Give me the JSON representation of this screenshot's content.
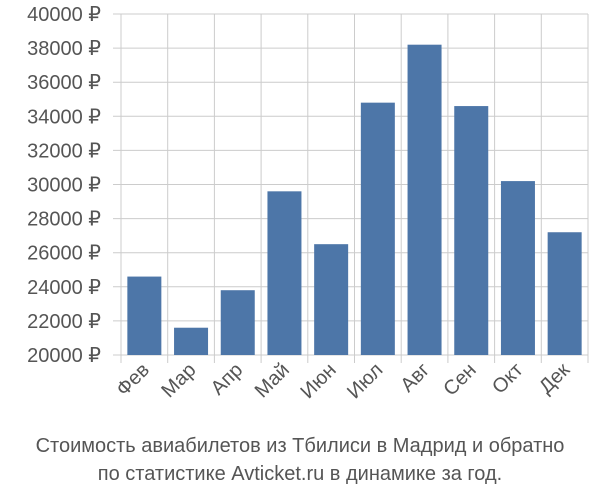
{
  "chart_data": {
    "type": "bar",
    "categories": [
      "Фев",
      "Мар",
      "Апр",
      "Май",
      "Июн",
      "Июл",
      "Авг",
      "Сен",
      "Окт",
      "Дек"
    ],
    "values": [
      24600,
      21600,
      23800,
      29600,
      26500,
      34800,
      38200,
      34600,
      30200,
      27200
    ],
    "ylim": [
      20000,
      40000
    ],
    "yticks": [
      20000,
      22000,
      24000,
      26000,
      28000,
      30000,
      32000,
      34000,
      36000,
      38000,
      40000
    ],
    "ytick_labels": [
      "20000 ₽",
      "22000 ₽",
      "24000 ₽",
      "26000 ₽",
      "28000 ₽",
      "30000 ₽",
      "32000 ₽",
      "34000 ₽",
      "36000 ₽",
      "38000 ₽",
      "40000 ₽"
    ],
    "grid": true,
    "bar_color": "#4d76a8"
  },
  "caption": {
    "line1": "Стоимость авиабилетов из Тбилиси в Мадрид и обратно",
    "line2": "по статистике Avticket.ru в динамике за год."
  },
  "colors": {
    "grid": "#cccccc",
    "text": "#555555"
  }
}
